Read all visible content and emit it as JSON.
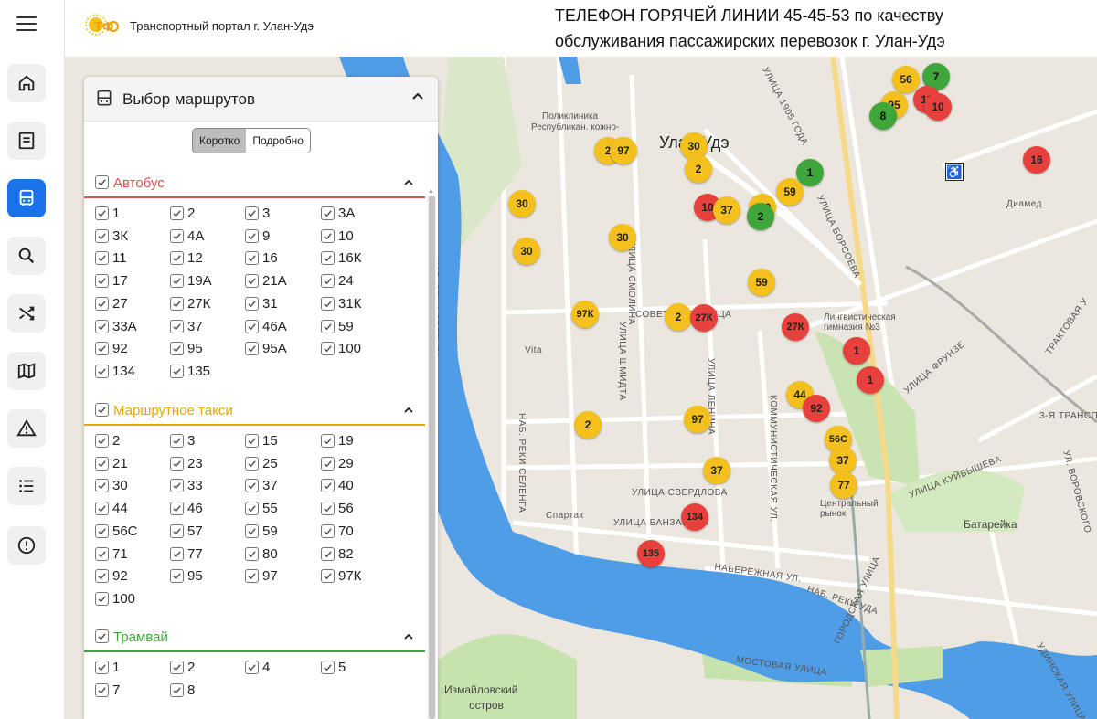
{
  "header": {
    "portal_title": "Транспортный портал г. Улан-Удэ",
    "hotline_line1": "ТЕЛЕФОН ГОРЯЧЕЙ ЛИНИИ 45-45-53 по качеству",
    "hotline_line2": "обслуживания пассажирских перевозок г. Улан-Удэ"
  },
  "colors": {
    "accent": "#1a73e8",
    "bus": "#e8403c",
    "taxi": "#f4c01d",
    "tram": "#3fa63c",
    "water": "#4f9de6"
  },
  "sidebar": {
    "items": [
      {
        "icon": "home-icon"
      },
      {
        "icon": "news-icon"
      },
      {
        "icon": "bus-icon",
        "active": true
      },
      {
        "icon": "search-icon"
      },
      {
        "icon": "shuffle-icon"
      },
      {
        "icon": "map-icon"
      },
      {
        "icon": "warning-icon"
      },
      {
        "icon": "list-icon"
      },
      {
        "icon": "info-icon"
      }
    ]
  },
  "panel": {
    "title": "Выбор маршрутов",
    "toggle_short": "Коротко",
    "toggle_detailed": "Подробно",
    "categories": [
      {
        "name": "Автобус",
        "color": "#d9534f",
        "routes": [
          "1",
          "2",
          "3",
          "3А",
          "3К",
          "4А",
          "9",
          "10",
          "11",
          "12",
          "16",
          "16К",
          "17",
          "19А",
          "21А",
          "24",
          "27",
          "27К",
          "31",
          "31К",
          "33А",
          "37",
          "46А",
          "59",
          "92",
          "95",
          "95А",
          "100",
          "134",
          "135"
        ]
      },
      {
        "name": "Маршрутное такси",
        "color": "#e6a700",
        "routes": [
          "2",
          "3",
          "15",
          "19",
          "21",
          "23",
          "25",
          "29",
          "30",
          "33",
          "37",
          "40",
          "44",
          "46",
          "55",
          "56",
          "56С",
          "57",
          "59",
          "70",
          "71",
          "77",
          "80",
          "82",
          "92",
          "95",
          "97",
          "97К",
          "100"
        ]
      },
      {
        "name": "Трамвай",
        "color": "#3fa63c",
        "routes": [
          "1",
          "2",
          "4",
          "5",
          "7",
          "8"
        ]
      }
    ]
  },
  "map": {
    "labels": {
      "city": "Улан-Удэ",
      "sovetskaya": "СОВЕТСКАЯ УЛИЦА",
      "sverdlova": "УЛИЦА СВЕРДЛОВА",
      "banzarova": "УЛИЦА БАНЗАРОВА",
      "naberezhnaya": "НАБЕРЕЖНАЯ УЛ.",
      "nab_reki_uda": "НАБ. РЕКИ УДА",
      "nab_seleng1": "НАБ. РЕКИ СЕЛЕНГА",
      "nab_seleng2": "НАБ. РЕКИ СЕЛЕНГА",
      "kommunisticheskaya": "КОММУНИСТИЧЕСКАЯ УЛ.",
      "lenina": "УЛИЦА ЛЕНИНА",
      "shmidta": "УЛИЦА ШМИДТА",
      "smolina": "УЛИЦА СМОЛИНА",
      "borsoeva": "УЛИЦА БОРСОЕВА",
      "kuybysheva": "УЛИЦА КУЙБЫШЕВА",
      "frunze": "УЛИЦА ФРУНЗЕ",
      "traktovaya": "ТРАКТОВАЯ У",
      "vorovskogo": "УЛ. ВОРОВСКОГО",
      "mostovaya": "МОСТОВАЯ УЛИЦА",
      "gorodskaya": "ГОРОДСКАЯ УЛИЦА",
      "udinskaya": "УДИНСКАЯ УЛИЦА",
      "ul1905": "УЛИЦА 1905 ГОДА",
      "zabaykalskaya": "3-Я ТРАНСП",
      "izmaylovsky": "Измайловский",
      "ostrov": "остров",
      "batareyka": "Батарейка",
      "sportak": "Спартак",
      "vita": "Vita",
      "diamed": "Диамед",
      "polyclinic": "Поликлиника",
      "rep_kozh": "Республикан. кожно-",
      "gymnasium": "Лингвистическая гимназия №3",
      "central_market": "Центральный рынок"
    },
    "pins": [
      {
        "label": "56",
        "type": "taxi"
      },
      {
        "label": "7",
        "type": "tram"
      },
      {
        "label": "95",
        "type": "taxi"
      },
      {
        "label": "16",
        "type": "bus"
      },
      {
        "label": "10",
        "type": "bus"
      },
      {
        "label": "8",
        "type": "tram"
      },
      {
        "label": "16",
        "type": "bus"
      },
      {
        "label": "2",
        "type": "taxi"
      },
      {
        "label": "97",
        "type": "taxi"
      },
      {
        "label": "30",
        "type": "taxi"
      },
      {
        "label": "2",
        "type": "taxi"
      },
      {
        "label": "1",
        "type": "tram"
      },
      {
        "label": "30",
        "type": "taxi"
      },
      {
        "label": "10",
        "type": "bus"
      },
      {
        "label": "37",
        "type": "taxi"
      },
      {
        "label": "100",
        "type": "taxi"
      },
      {
        "label": "2",
        "type": "tram"
      },
      {
        "label": "59",
        "type": "taxi"
      },
      {
        "label": "30",
        "type": "taxi"
      },
      {
        "label": "30",
        "type": "taxi"
      },
      {
        "label": "59",
        "type": "taxi"
      },
      {
        "label": "97К",
        "type": "taxi"
      },
      {
        "label": "2",
        "type": "taxi"
      },
      {
        "label": "27К",
        "type": "bus"
      },
      {
        "label": "27К",
        "type": "bus"
      },
      {
        "label": "1",
        "type": "bus"
      },
      {
        "label": "1",
        "type": "bus"
      },
      {
        "label": "44",
        "type": "taxi"
      },
      {
        "label": "92",
        "type": "bus"
      },
      {
        "label": "2",
        "type": "taxi"
      },
      {
        "label": "97",
        "type": "taxi"
      },
      {
        "label": "56С",
        "type": "taxi"
      },
      {
        "label": "37",
        "type": "taxi"
      },
      {
        "label": "37",
        "type": "taxi"
      },
      {
        "label": "77",
        "type": "taxi"
      },
      {
        "label": "134",
        "type": "bus"
      },
      {
        "label": "135",
        "type": "bus"
      }
    ]
  }
}
